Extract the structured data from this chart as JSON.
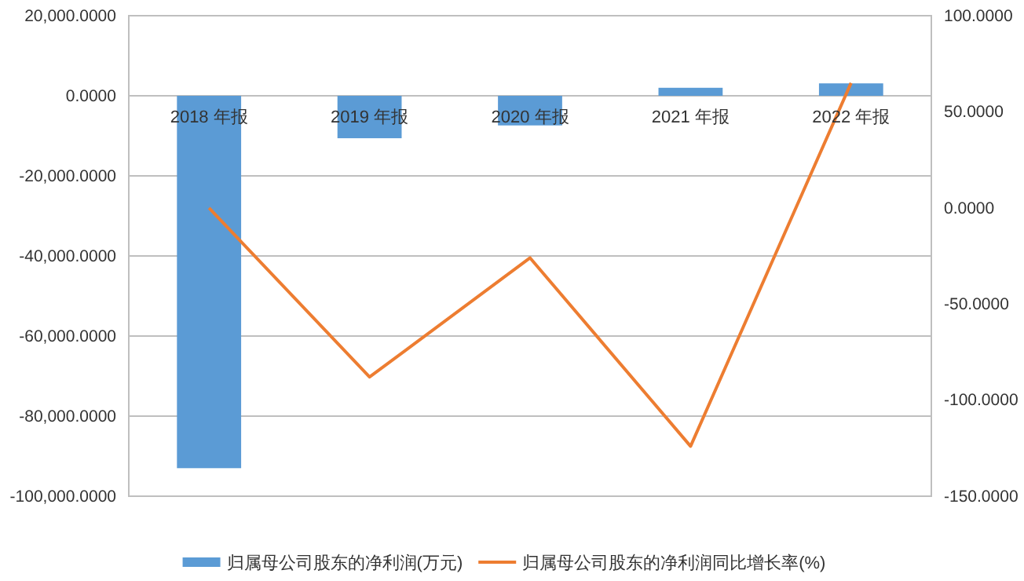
{
  "chart_data": {
    "type": "bar",
    "categories": [
      "2018 年报",
      "2019 年报",
      "2020 年报",
      "2021 年报",
      "2022 年报"
    ],
    "series": [
      {
        "name": "归属母公司股东的净利润(万元)",
        "color": "#5b9bd5",
        "values": [
          -93000,
          -10600,
          -7400,
          2000,
          3100
        ]
      },
      {
        "name": "归属母公司股东的净利润同比增长率(%)",
        "type": "line",
        "axis": "y2",
        "color": "#ed7d31",
        "values": [
          0,
          -88,
          -26,
          -124,
          65
        ]
      }
    ],
    "ylim": [
      -100000,
      20000
    ],
    "yticks": [
      {
        "value": -100000,
        "label": "-100,000.0000"
      },
      {
        "value": -80000,
        "label": "-80,000.0000"
      },
      {
        "value": -60000,
        "label": "-60,000.0000"
      },
      {
        "value": -40000,
        "label": "-40,000.0000"
      },
      {
        "value": -20000,
        "label": "-20,000.0000"
      },
      {
        "value": 0,
        "label": "0.0000"
      },
      {
        "value": 20000,
        "label": "20,000.0000"
      }
    ],
    "y2lim": [
      -150,
      100
    ],
    "y2ticks": [
      {
        "value": -150,
        "label": "-150.0000"
      },
      {
        "value": -100,
        "label": "-100.0000"
      },
      {
        "value": -50,
        "label": "-50.0000"
      },
      {
        "value": 0,
        "label": "0.0000"
      },
      {
        "value": 50,
        "label": "50.0000"
      },
      {
        "value": 100,
        "label": "100.0000"
      }
    ],
    "grid": "y",
    "legend": "bottom"
  }
}
